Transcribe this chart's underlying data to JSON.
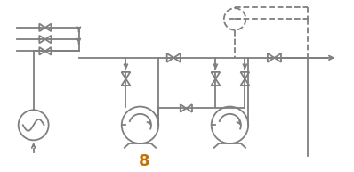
{
  "bg_color": "#ffffff",
  "line_color": "#7f7f7f",
  "line_width": 1.3,
  "label_color": "#c87000",
  "label_text": "8",
  "fig_w": 3.98,
  "fig_h": 1.93,
  "dpi": 100
}
